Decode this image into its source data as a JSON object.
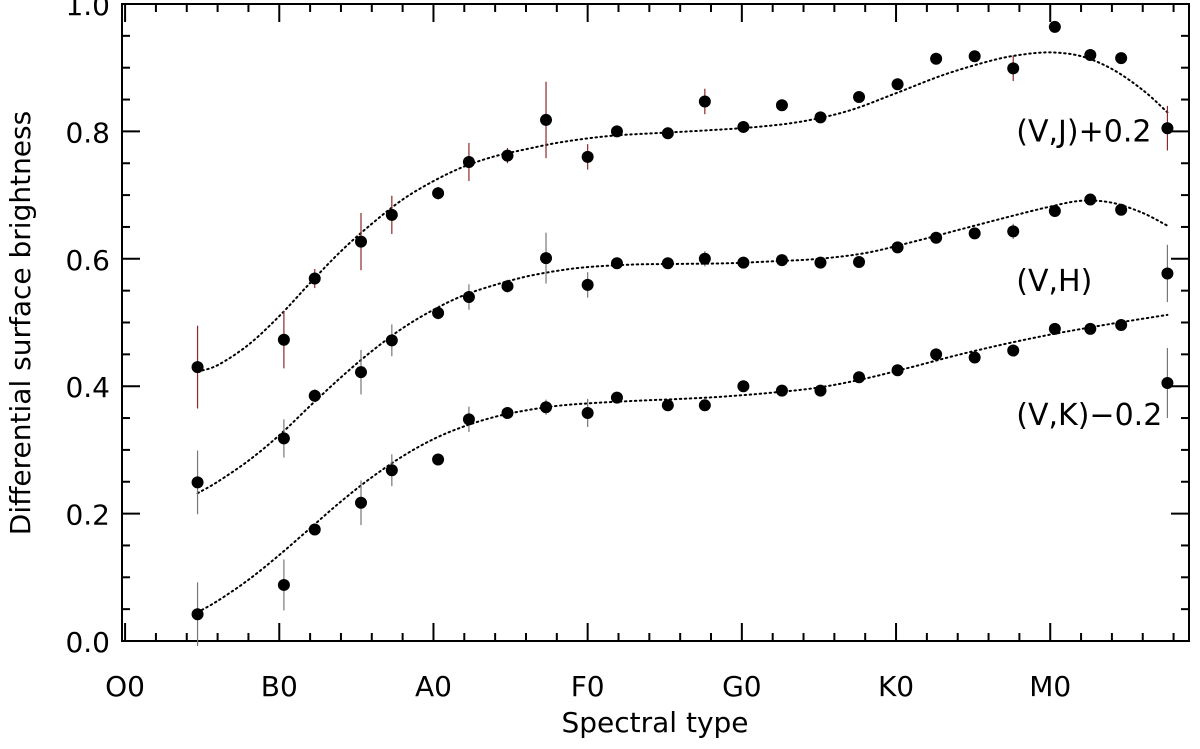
{
  "chart_data": {
    "type": "scatter",
    "xlabel": "Spectral type",
    "ylabel": "Differential surface brightness",
    "xlim": [
      -0.2,
      69
    ],
    "ylim": [
      0.0,
      1.0
    ],
    "x_ticks": [
      {
        "value": 0,
        "label": "O0"
      },
      {
        "value": 10,
        "label": "B0"
      },
      {
        "value": 20,
        "label": "A0"
      },
      {
        "value": 30,
        "label": "F0"
      },
      {
        "value": 40,
        "label": "G0"
      },
      {
        "value": 50,
        "label": "K0"
      },
      {
        "value": 60,
        "label": "M0"
      }
    ],
    "y_ticks": [
      {
        "value": 0.0,
        "label": "0.0"
      },
      {
        "value": 0.2,
        "label": "0.2"
      },
      {
        "value": 0.4,
        "label": "0.4"
      },
      {
        "value": 0.6,
        "label": "0.6"
      },
      {
        "value": 0.8,
        "label": "0.8"
      },
      {
        "value": 1.0,
        "label": "1.0"
      }
    ],
    "series": [
      {
        "name": "(V,J)+0.2",
        "label_position": {
          "x": 57.8,
          "y": 0.8
        },
        "error_color": "#8b2a2a",
        "points": [
          {
            "x": 4.7,
            "y": 0.43,
            "err": 0.065
          },
          {
            "x": 10.3,
            "y": 0.473,
            "err": 0.045
          },
          {
            "x": 12.3,
            "y": 0.569,
            "err": 0.015
          },
          {
            "x": 15.3,
            "y": 0.627,
            "err": 0.045
          },
          {
            "x": 17.3,
            "y": 0.669,
            "err": 0.03
          },
          {
            "x": 20.3,
            "y": 0.703,
            "err": 0.01
          },
          {
            "x": 22.3,
            "y": 0.752,
            "err": 0.03
          },
          {
            "x": 24.8,
            "y": 0.762,
            "err": 0.012
          },
          {
            "x": 27.3,
            "y": 0.818,
            "err": 0.06
          },
          {
            "x": 30.0,
            "y": 0.76,
            "err": 0.02
          },
          {
            "x": 31.9,
            "y": 0.8,
            "err": 0.0
          },
          {
            "x": 35.2,
            "y": 0.797,
            "err": 0.0
          },
          {
            "x": 37.6,
            "y": 0.847,
            "err": 0.02
          },
          {
            "x": 40.1,
            "y": 0.807,
            "err": 0.0
          },
          {
            "x": 42.6,
            "y": 0.841,
            "err": 0.0
          },
          {
            "x": 45.1,
            "y": 0.822,
            "err": 0.0
          },
          {
            "x": 47.6,
            "y": 0.854,
            "err": 0.0
          },
          {
            "x": 50.1,
            "y": 0.874,
            "err": 0.0
          },
          {
            "x": 52.6,
            "y": 0.914,
            "err": 0.0
          },
          {
            "x": 55.1,
            "y": 0.918,
            "err": 0.0
          },
          {
            "x": 57.6,
            "y": 0.899,
            "err": 0.02
          },
          {
            "x": 60.3,
            "y": 0.964,
            "err": 0.0
          },
          {
            "x": 62.6,
            "y": 0.92,
            "err": 0.0
          },
          {
            "x": 64.6,
            "y": 0.915,
            "err": 0.0
          },
          {
            "x": 67.6,
            "y": 0.805,
            "err": 0.035
          }
        ],
        "fit": [
          {
            "x": 4.7,
            "y": 0.423
          },
          {
            "x": 6.0,
            "y": 0.433
          },
          {
            "x": 8.0,
            "y": 0.465
          },
          {
            "x": 10.0,
            "y": 0.51
          },
          {
            "x": 12.0,
            "y": 0.562
          },
          {
            "x": 14.0,
            "y": 0.612
          },
          {
            "x": 16.0,
            "y": 0.655
          },
          {
            "x": 18.0,
            "y": 0.693
          },
          {
            "x": 20.0,
            "y": 0.722
          },
          {
            "x": 22.0,
            "y": 0.745
          },
          {
            "x": 24.0,
            "y": 0.761
          },
          {
            "x": 26.0,
            "y": 0.772
          },
          {
            "x": 28.0,
            "y": 0.782
          },
          {
            "x": 30.0,
            "y": 0.789
          },
          {
            "x": 32.0,
            "y": 0.794
          },
          {
            "x": 35.0,
            "y": 0.798
          },
          {
            "x": 38.0,
            "y": 0.802
          },
          {
            "x": 41.0,
            "y": 0.807
          },
          {
            "x": 44.0,
            "y": 0.816
          },
          {
            "x": 47.0,
            "y": 0.833
          },
          {
            "x": 50.0,
            "y": 0.86
          },
          {
            "x": 53.0,
            "y": 0.888
          },
          {
            "x": 56.0,
            "y": 0.91
          },
          {
            "x": 58.0,
            "y": 0.92
          },
          {
            "x": 60.0,
            "y": 0.924
          },
          {
            "x": 62.0,
            "y": 0.918
          },
          {
            "x": 64.0,
            "y": 0.898
          },
          {
            "x": 66.0,
            "y": 0.865
          },
          {
            "x": 67.6,
            "y": 0.83
          }
        ]
      },
      {
        "name": "(V,H)",
        "label_position": {
          "x": 57.8,
          "y": 0.565
        },
        "error_color": "#777777",
        "points": [
          {
            "x": 4.7,
            "y": 0.249,
            "err": 0.05
          },
          {
            "x": 10.3,
            "y": 0.318,
            "err": 0.03
          },
          {
            "x": 12.3,
            "y": 0.385,
            "err": 0.01
          },
          {
            "x": 15.3,
            "y": 0.422,
            "err": 0.035
          },
          {
            "x": 17.3,
            "y": 0.472,
            "err": 0.025
          },
          {
            "x": 20.3,
            "y": 0.515,
            "err": 0.01
          },
          {
            "x": 22.3,
            "y": 0.54,
            "err": 0.02
          },
          {
            "x": 24.8,
            "y": 0.557,
            "err": 0.01
          },
          {
            "x": 27.3,
            "y": 0.601,
            "err": 0.04
          },
          {
            "x": 30.0,
            "y": 0.559,
            "err": 0.02
          },
          {
            "x": 31.9,
            "y": 0.593,
            "err": 0.0
          },
          {
            "x": 35.2,
            "y": 0.593,
            "err": 0.0
          },
          {
            "x": 37.6,
            "y": 0.6,
            "err": 0.012
          },
          {
            "x": 40.1,
            "y": 0.594,
            "err": 0.0
          },
          {
            "x": 42.6,
            "y": 0.598,
            "err": 0.0
          },
          {
            "x": 45.1,
            "y": 0.594,
            "err": 0.0
          },
          {
            "x": 47.6,
            "y": 0.595,
            "err": 0.0
          },
          {
            "x": 50.1,
            "y": 0.618,
            "err": 0.0
          },
          {
            "x": 52.6,
            "y": 0.633,
            "err": 0.0
          },
          {
            "x": 55.1,
            "y": 0.64,
            "err": 0.0
          },
          {
            "x": 57.6,
            "y": 0.643,
            "err": 0.012
          },
          {
            "x": 60.3,
            "y": 0.675,
            "err": 0.0
          },
          {
            "x": 62.6,
            "y": 0.693,
            "err": 0.0
          },
          {
            "x": 64.6,
            "y": 0.677,
            "err": 0.0
          },
          {
            "x": 67.6,
            "y": 0.577,
            "err": 0.045
          }
        ],
        "fit": [
          {
            "x": 4.7,
            "y": 0.232
          },
          {
            "x": 6.0,
            "y": 0.25
          },
          {
            "x": 8.0,
            "y": 0.283
          },
          {
            "x": 10.0,
            "y": 0.323
          },
          {
            "x": 12.0,
            "y": 0.369
          },
          {
            "x": 14.0,
            "y": 0.414
          },
          {
            "x": 16.0,
            "y": 0.455
          },
          {
            "x": 18.0,
            "y": 0.491
          },
          {
            "x": 20.0,
            "y": 0.52
          },
          {
            "x": 22.0,
            "y": 0.543
          },
          {
            "x": 24.0,
            "y": 0.559
          },
          {
            "x": 26.0,
            "y": 0.572
          },
          {
            "x": 28.0,
            "y": 0.581
          },
          {
            "x": 30.0,
            "y": 0.587
          },
          {
            "x": 33.0,
            "y": 0.591
          },
          {
            "x": 36.0,
            "y": 0.592
          },
          {
            "x": 39.0,
            "y": 0.593
          },
          {
            "x": 42.0,
            "y": 0.596
          },
          {
            "x": 45.0,
            "y": 0.6
          },
          {
            "x": 48.0,
            "y": 0.609
          },
          {
            "x": 51.0,
            "y": 0.626
          },
          {
            "x": 54.0,
            "y": 0.645
          },
          {
            "x": 57.0,
            "y": 0.664
          },
          {
            "x": 60.0,
            "y": 0.682
          },
          {
            "x": 62.0,
            "y": 0.691
          },
          {
            "x": 64.0,
            "y": 0.688
          },
          {
            "x": 66.0,
            "y": 0.672
          },
          {
            "x": 67.6,
            "y": 0.652
          }
        ]
      },
      {
        "name": "(V,K)−0.2",
        "label_position": {
          "x": 57.8,
          "y": 0.355
        },
        "error_color": "#777777",
        "points": [
          {
            "x": 4.7,
            "y": 0.042,
            "err": 0.05
          },
          {
            "x": 10.3,
            "y": 0.088,
            "err": 0.04
          },
          {
            "x": 12.3,
            "y": 0.175,
            "err": 0.0
          },
          {
            "x": 15.3,
            "y": 0.217,
            "err": 0.035
          },
          {
            "x": 17.3,
            "y": 0.268,
            "err": 0.025
          },
          {
            "x": 20.3,
            "y": 0.285,
            "err": 0.0
          },
          {
            "x": 22.3,
            "y": 0.348,
            "err": 0.02
          },
          {
            "x": 24.8,
            "y": 0.358,
            "err": 0.0
          },
          {
            "x": 27.3,
            "y": 0.367,
            "err": 0.012
          },
          {
            "x": 30.0,
            "y": 0.358,
            "err": 0.022
          },
          {
            "x": 31.9,
            "y": 0.382,
            "err": 0.0
          },
          {
            "x": 35.2,
            "y": 0.37,
            "err": 0.0
          },
          {
            "x": 37.6,
            "y": 0.37,
            "err": 0.0
          },
          {
            "x": 40.1,
            "y": 0.4,
            "err": 0.0
          },
          {
            "x": 42.6,
            "y": 0.393,
            "err": 0.0
          },
          {
            "x": 45.1,
            "y": 0.393,
            "err": 0.0
          },
          {
            "x": 47.6,
            "y": 0.414,
            "err": 0.0
          },
          {
            "x": 50.1,
            "y": 0.425,
            "err": 0.0
          },
          {
            "x": 52.6,
            "y": 0.45,
            "err": 0.0
          },
          {
            "x": 55.1,
            "y": 0.445,
            "err": 0.0
          },
          {
            "x": 57.6,
            "y": 0.456,
            "err": 0.0
          },
          {
            "x": 60.3,
            "y": 0.49,
            "err": 0.0
          },
          {
            "x": 62.6,
            "y": 0.49,
            "err": 0.0
          },
          {
            "x": 64.6,
            "y": 0.496,
            "err": 0.0
          },
          {
            "x": 67.6,
            "y": 0.405,
            "err": 0.055
          }
        ],
        "fit": [
          {
            "x": 4.7,
            "y": 0.045
          },
          {
            "x": 6.0,
            "y": 0.063
          },
          {
            "x": 8.0,
            "y": 0.096
          },
          {
            "x": 10.0,
            "y": 0.135
          },
          {
            "x": 12.0,
            "y": 0.177
          },
          {
            "x": 14.0,
            "y": 0.219
          },
          {
            "x": 16.0,
            "y": 0.257
          },
          {
            "x": 18.0,
            "y": 0.29
          },
          {
            "x": 20.0,
            "y": 0.317
          },
          {
            "x": 22.0,
            "y": 0.337
          },
          {
            "x": 24.0,
            "y": 0.352
          },
          {
            "x": 26.0,
            "y": 0.362
          },
          {
            "x": 28.0,
            "y": 0.369
          },
          {
            "x": 30.0,
            "y": 0.373
          },
          {
            "x": 33.0,
            "y": 0.377
          },
          {
            "x": 36.0,
            "y": 0.38
          },
          {
            "x": 39.0,
            "y": 0.384
          },
          {
            "x": 42.0,
            "y": 0.39
          },
          {
            "x": 45.0,
            "y": 0.398
          },
          {
            "x": 48.0,
            "y": 0.412
          },
          {
            "x": 51.0,
            "y": 0.43
          },
          {
            "x": 54.0,
            "y": 0.449
          },
          {
            "x": 57.0,
            "y": 0.466
          },
          {
            "x": 60.0,
            "y": 0.481
          },
          {
            "x": 63.0,
            "y": 0.494
          },
          {
            "x": 65.0,
            "y": 0.502
          },
          {
            "x": 67.6,
            "y": 0.512
          }
        ]
      }
    ]
  }
}
